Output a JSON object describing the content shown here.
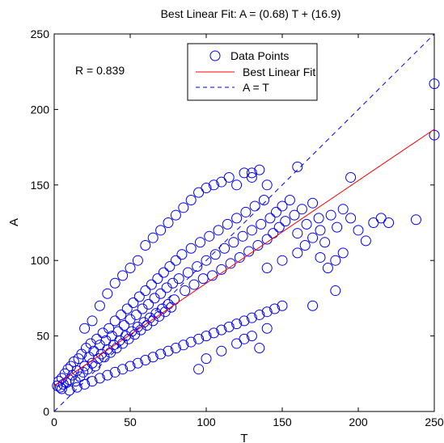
{
  "chart_data": {
    "type": "scatter",
    "title": "Best Linear Fit:  A = (0.68) T + (16.9)",
    "xlabel": "T",
    "ylabel": "A",
    "xlim": [
      0,
      250
    ],
    "ylim": [
      0,
      250
    ],
    "x_ticks": [
      0,
      50,
      100,
      150,
      200,
      250
    ],
    "y_ticks": [
      0,
      50,
      100,
      150,
      200,
      250
    ],
    "x_tick_labels": [
      "0",
      "50",
      "100",
      "150",
      "200",
      "250"
    ],
    "y_tick_labels": [
      "0",
      "50",
      "100",
      "150",
      "200",
      "250"
    ],
    "grid": false,
    "legend_placement": "top-center",
    "annotation": "R = 0.839",
    "colors": {
      "points": "#0000ff",
      "fit": "#ff0000",
      "identity": "#0000ff"
    },
    "legend": [
      {
        "label": "Data Points",
        "marker": "circle",
        "color": "#0000ff"
      },
      {
        "label": "Best Linear Fit",
        "line": "solid",
        "color": "#ff0000"
      },
      {
        "label": "A = T",
        "line": "dashed",
        "color": "#0000ff"
      }
    ],
    "series": [
      {
        "name": "Data Points",
        "kind": "scatter",
        "color": "#0000ff",
        "points": [
          [
            2,
            17
          ],
          [
            3,
            20
          ],
          [
            4,
            16
          ],
          [
            5,
            22
          ],
          [
            6,
            18
          ],
          [
            7,
            25
          ],
          [
            8,
            19
          ],
          [
            9,
            28
          ],
          [
            10,
            21
          ],
          [
            11,
            30
          ],
          [
            12,
            24
          ],
          [
            13,
            33
          ],
          [
            14,
            20
          ],
          [
            15,
            27
          ],
          [
            16,
            35
          ],
          [
            17,
            23
          ],
          [
            18,
            38
          ],
          [
            19,
            26
          ],
          [
            20,
            30
          ],
          [
            21,
            42
          ],
          [
            22,
            28
          ],
          [
            23,
            36
          ],
          [
            24,
            45
          ],
          [
            25,
            32
          ],
          [
            26,
            40
          ],
          [
            27,
            30
          ],
          [
            28,
            48
          ],
          [
            29,
            35
          ],
          [
            30,
            44
          ],
          [
            31,
            38
          ],
          [
            32,
            52
          ],
          [
            33,
            36
          ],
          [
            34,
            47
          ],
          [
            35,
            41
          ],
          [
            36,
            55
          ],
          [
            37,
            39
          ],
          [
            38,
            50
          ],
          [
            39,
            44
          ],
          [
            40,
            60
          ],
          [
            41,
            42
          ],
          [
            42,
            53
          ],
          [
            43,
            47
          ],
          [
            44,
            64
          ],
          [
            45,
            45
          ],
          [
            46,
            57
          ],
          [
            47,
            50
          ],
          [
            48,
            68
          ],
          [
            49,
            48
          ],
          [
            50,
            61
          ],
          [
            51,
            53
          ],
          [
            52,
            72
          ],
          [
            53,
            51
          ],
          [
            54,
            64
          ],
          [
            55,
            56
          ],
          [
            56,
            76
          ],
          [
            57,
            54
          ],
          [
            58,
            68
          ],
          [
            59,
            59
          ],
          [
            60,
            80
          ],
          [
            61,
            57
          ],
          [
            62,
            71
          ],
          [
            63,
            62
          ],
          [
            64,
            84
          ],
          [
            65,
            60
          ],
          [
            66,
            75
          ],
          [
            67,
            65
          ],
          [
            68,
            88
          ],
          [
            69,
            63
          ],
          [
            70,
            78
          ],
          [
            71,
            68
          ],
          [
            72,
            92
          ],
          [
            73,
            66
          ],
          [
            74,
            82
          ],
          [
            75,
            71
          ],
          [
            76,
            96
          ],
          [
            77,
            69
          ],
          [
            78,
            85
          ],
          [
            79,
            74
          ],
          [
            80,
            100
          ],
          [
            82,
            88
          ],
          [
            84,
            104
          ],
          [
            86,
            80
          ],
          [
            88,
            92
          ],
          [
            90,
            108
          ],
          [
            92,
            84
          ],
          [
            94,
            96
          ],
          [
            96,
            112
          ],
          [
            98,
            88
          ],
          [
            100,
            100
          ],
          [
            102,
            116
          ],
          [
            104,
            90
          ],
          [
            106,
            104
          ],
          [
            108,
            120
          ],
          [
            110,
            94
          ],
          [
            112,
            108
          ],
          [
            114,
            124
          ],
          [
            116,
            98
          ],
          [
            118,
            112
          ],
          [
            120,
            128
          ],
          [
            122,
            102
          ],
          [
            124,
            116
          ],
          [
            126,
            132
          ],
          [
            128,
            106
          ],
          [
            130,
            120
          ],
          [
            132,
            136
          ],
          [
            134,
            110
          ],
          [
            136,
            124
          ],
          [
            138,
            140
          ],
          [
            140,
            114
          ],
          [
            142,
            128
          ],
          [
            144,
            118
          ],
          [
            146,
            132
          ],
          [
            148,
            122
          ],
          [
            150,
            136
          ],
          [
            152,
            126
          ],
          [
            155,
            140
          ],
          [
            158,
            130
          ],
          [
            160,
            118
          ],
          [
            163,
            134
          ],
          [
            166,
            124
          ],
          [
            170,
            138
          ],
          [
            174,
            128
          ],
          [
            178,
            112
          ],
          [
            182,
            130
          ],
          [
            186,
            122
          ],
          [
            190,
            134
          ],
          [
            195,
            128
          ],
          [
            200,
            120
          ],
          [
            205,
            113
          ],
          [
            210,
            125
          ],
          [
            20,
            55
          ],
          [
            25,
            60
          ],
          [
            30,
            70
          ],
          [
            35,
            78
          ],
          [
            40,
            85
          ],
          [
            45,
            90
          ],
          [
            50,
            95
          ],
          [
            55,
            100
          ],
          [
            60,
            110
          ],
          [
            65,
            115
          ],
          [
            70,
            120
          ],
          [
            75,
            125
          ],
          [
            80,
            130
          ],
          [
            85,
            135
          ],
          [
            90,
            140
          ],
          [
            95,
            145
          ],
          [
            100,
            148
          ],
          [
            105,
            150
          ],
          [
            110,
            152
          ],
          [
            115,
            155
          ],
          [
            120,
            150
          ],
          [
            125,
            158
          ],
          [
            130,
            155
          ],
          [
            135,
            160
          ],
          [
            140,
            150
          ],
          [
            5,
            15
          ],
          [
            10,
            14
          ],
          [
            15,
            16
          ],
          [
            20,
            18
          ],
          [
            25,
            20
          ],
          [
            30,
            22
          ],
          [
            35,
            24
          ],
          [
            40,
            26
          ],
          [
            45,
            28
          ],
          [
            50,
            30
          ],
          [
            55,
            32
          ],
          [
            60,
            34
          ],
          [
            65,
            36
          ],
          [
            70,
            38
          ],
          [
            75,
            40
          ],
          [
            80,
            42
          ],
          [
            85,
            44
          ],
          [
            90,
            46
          ],
          [
            95,
            48
          ],
          [
            100,
            50
          ],
          [
            105,
            52
          ],
          [
            110,
            54
          ],
          [
            115,
            56
          ],
          [
            120,
            58
          ],
          [
            125,
            60
          ],
          [
            130,
            62
          ],
          [
            135,
            64
          ],
          [
            140,
            66
          ],
          [
            145,
            68
          ],
          [
            150,
            70
          ],
          [
            95,
            28
          ],
          [
            170,
            70
          ],
          [
            185,
            80
          ],
          [
            175,
            102
          ],
          [
            215,
            128
          ],
          [
            220,
            125
          ],
          [
            238,
            127
          ],
          [
            250,
            217
          ],
          [
            250,
            183
          ],
          [
            160,
            162
          ],
          [
            130,
            158
          ],
          [
            195,
            155
          ],
          [
            140,
            95
          ],
          [
            150,
            100
          ],
          [
            160,
            105
          ],
          [
            165,
            110
          ],
          [
            170,
            115
          ],
          [
            175,
            120
          ],
          [
            180,
            95
          ],
          [
            185,
            100
          ],
          [
            190,
            105
          ],
          [
            100,
            35
          ],
          [
            110,
            40
          ],
          [
            120,
            45
          ],
          [
            130,
            50
          ],
          [
            140,
            55
          ],
          [
            135,
            42
          ],
          [
            125,
            48
          ]
        ]
      },
      {
        "name": "Best Linear Fit",
        "kind": "line",
        "color": "#ff0000",
        "x": [
          0,
          250
        ],
        "y": [
          16.9,
          186.9
        ]
      },
      {
        "name": "A = T",
        "kind": "line",
        "style": "dashed",
        "color": "#0000ff",
        "x": [
          0,
          250
        ],
        "y": [
          0,
          250
        ]
      }
    ]
  }
}
